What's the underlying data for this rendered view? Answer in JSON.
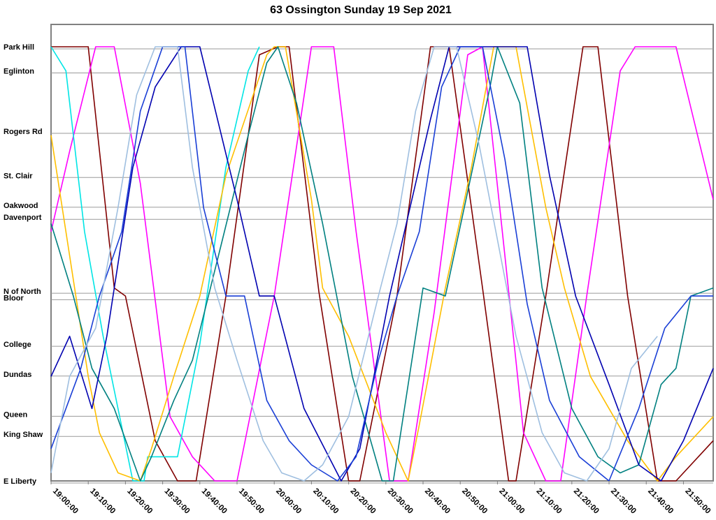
{
  "chart_data": {
    "type": "line",
    "title": "63 Ossington Sunday 19 Sep 2021",
    "xlabel": "",
    "ylabel": "",
    "x_ticks": [
      "19:00:00",
      "19:10:00",
      "19:20:00",
      "19:30:00",
      "19:40:00",
      "19:50:00",
      "20:00:00",
      "20:10:00",
      "20:20:00",
      "20:30:00",
      "20:40:00",
      "20:50:00",
      "21:00:00",
      "21:10:00",
      "21:20:00",
      "21:30:00",
      "21:40:00",
      "21:50:00"
    ],
    "xlim": [
      "19:00:00",
      "21:58:00"
    ],
    "stops": [
      {
        "name": "Park Hill",
        "km": 0.0
      },
      {
        "name": "Eglinton",
        "km": 0.3
      },
      {
        "name": "Rogers Rd",
        "km": 1.05
      },
      {
        "name": "St. Clair",
        "km": 1.6
      },
      {
        "name": "Oakwood",
        "km": 1.97
      },
      {
        "name": "Davenport",
        "km": 2.12
      },
      {
        "name": "N of North",
        "km": 3.04
      },
      {
        "name": "Bloor",
        "km": 3.12
      },
      {
        "name": "College",
        "km": 3.7
      },
      {
        "name": "Dundas",
        "km": 4.07
      },
      {
        "name": "Queen",
        "km": 4.57
      },
      {
        "name": "King Shaw",
        "km": 4.82
      },
      {
        "name": "E Liberty",
        "km": 5.4
      }
    ],
    "ylim": [
      0,
      5.4
    ],
    "grid": true,
    "series": [
      {
        "color": "#800000",
        "points": [
          [
            "19:00",
            0
          ],
          [
            "19:10",
            0
          ],
          [
            "19:17",
            3.0
          ],
          [
            "19:20",
            3.1
          ],
          [
            "19:28",
            4.9
          ],
          [
            "19:34",
            5.4
          ],
          [
            "19:39",
            5.4
          ],
          [
            "19:47",
            3.1
          ],
          [
            "19:56",
            0.1
          ],
          [
            "20:01",
            0
          ],
          [
            "20:04",
            0
          ],
          [
            "20:12",
            3.05
          ],
          [
            "20:20",
            5.4
          ],
          [
            "20:23",
            5.4
          ],
          [
            "20:33",
            3.1
          ],
          [
            "20:42",
            0
          ],
          [
            "20:47",
            0
          ],
          [
            "20:56",
            3.0
          ],
          [
            "21:03",
            5.4
          ],
          [
            "21:05",
            5.4
          ],
          [
            "21:13",
            3.1
          ],
          [
            "21:23",
            0
          ],
          [
            "21:27",
            0
          ],
          [
            "21:35",
            3.1
          ],
          [
            "21:43",
            5.4
          ],
          [
            "21:48",
            5.4
          ],
          [
            "21:58",
            4.9
          ]
        ]
      },
      {
        "color": "#ff00ff",
        "points": [
          [
            "19:00",
            2.3
          ],
          [
            "19:05",
            1.3
          ],
          [
            "19:12",
            0
          ],
          [
            "19:17",
            0
          ],
          [
            "19:24",
            1.7
          ],
          [
            "19:32",
            4.6
          ],
          [
            "19:38",
            5.1
          ],
          [
            "19:44",
            5.4
          ],
          [
            "19:50",
            5.4
          ],
          [
            "20:00",
            3.1
          ],
          [
            "20:10",
            0
          ],
          [
            "20:16",
            0
          ],
          [
            "20:22",
            2.3
          ],
          [
            "20:31",
            5.4
          ],
          [
            "20:36",
            5.4
          ],
          [
            "20:43",
            3.3
          ],
          [
            "20:52",
            0.1
          ],
          [
            "20:56",
            0
          ],
          [
            "21:02",
            2.6
          ],
          [
            "21:07",
            4.8
          ],
          [
            "21:13",
            5.4
          ],
          [
            "21:17",
            5.4
          ],
          [
            "21:24",
            3.1
          ],
          [
            "21:33",
            0.3
          ],
          [
            "21:37",
            0
          ],
          [
            "21:48",
            0
          ],
          [
            "21:58",
            1.9
          ]
        ]
      },
      {
        "color": "#00e5e5",
        "points": [
          [
            "19:00",
            0
          ],
          [
            "19:04",
            0.3
          ],
          [
            "19:09",
            2.3
          ],
          [
            "19:14",
            3.6
          ],
          [
            "19:22",
            5.4
          ],
          [
            "19:25",
            5.4
          ],
          [
            "19:26",
            5.1
          ],
          [
            "19:34",
            5.1
          ],
          [
            "19:40",
            3.7
          ],
          [
            "19:47",
            1.5
          ],
          [
            "19:53",
            0.3
          ],
          [
            "19:56",
            0
          ]
        ]
      },
      {
        "color": "#ffbf00",
        "points": [
          [
            "19:00",
            1.1
          ],
          [
            "19:05",
            2.6
          ],
          [
            "19:10",
            4.1
          ],
          [
            "19:13",
            4.8
          ],
          [
            "19:18",
            5.3
          ],
          [
            "19:24",
            5.4
          ],
          [
            "19:27",
            5.0
          ],
          [
            "19:33",
            4.1
          ],
          [
            "19:40",
            3.1
          ],
          [
            "19:47",
            1.6
          ],
          [
            "19:58",
            0.1
          ],
          [
            "20:00",
            0
          ],
          [
            "20:03",
            0
          ],
          [
            "20:10",
            1.9
          ],
          [
            "20:13",
            3.0
          ],
          [
            "20:20",
            3.6
          ],
          [
            "20:30",
            4.8
          ],
          [
            "20:36",
            5.4
          ],
          [
            "20:39",
            4.7
          ],
          [
            "20:46",
            3.0
          ],
          [
            "20:53",
            1.5
          ],
          [
            "20:59",
            0
          ],
          [
            "21:05",
            0
          ],
          [
            "21:13",
            2.0
          ],
          [
            "21:18",
            3.0
          ],
          [
            "21:25",
            4.1
          ],
          [
            "21:35",
            4.9
          ],
          [
            "21:43",
            5.4
          ],
          [
            "21:48",
            5.1
          ],
          [
            "21:58",
            4.6
          ]
        ]
      },
      {
        "color": "#008080",
        "points": [
          [
            "19:00",
            2.2
          ],
          [
            "19:06",
            3.1
          ],
          [
            "19:11",
            4.0
          ],
          [
            "19:17",
            4.5
          ],
          [
            "19:24",
            5.4
          ],
          [
            "19:27",
            5.1
          ],
          [
            "19:33",
            4.4
          ],
          [
            "19:38",
            3.9
          ],
          [
            "19:45",
            2.6
          ],
          [
            "19:53",
            1.1
          ],
          [
            "19:58",
            0.2
          ],
          [
            "20:01",
            0
          ],
          [
            "20:06",
            0.7
          ],
          [
            "20:13",
            2.2
          ],
          [
            "20:21",
            4.1
          ],
          [
            "20:29",
            5.4
          ],
          [
            "20:32",
            5.4
          ],
          [
            "20:40",
            3.0
          ],
          [
            "20:46",
            3.1
          ],
          [
            "20:52",
            1.8
          ],
          [
            "20:58",
            0.5
          ],
          [
            "21:00",
            0
          ],
          [
            "21:06",
            0.7
          ],
          [
            "21:12",
            3.0
          ],
          [
            "21:20",
            4.5
          ],
          [
            "21:27",
            5.1
          ],
          [
            "21:33",
            5.3
          ],
          [
            "21:38",
            5.2
          ],
          [
            "21:44",
            4.2
          ],
          [
            "21:48",
            4.0
          ],
          [
            "21:52",
            3.1
          ],
          [
            "21:58",
            3.0
          ]
        ]
      },
      {
        "color": "#0000b0",
        "points": [
          [
            "19:00",
            4.1
          ],
          [
            "19:05",
            3.6
          ],
          [
            "19:11",
            4.5
          ],
          [
            "19:15",
            3.6
          ],
          [
            "19:22",
            1.5
          ],
          [
            "19:28",
            0.5
          ],
          [
            "19:35",
            0
          ],
          [
            "19:40",
            0
          ],
          [
            "19:50",
            1.9
          ],
          [
            "19:56",
            3.1
          ],
          [
            "20:00",
            3.1
          ],
          [
            "20:08",
            4.5
          ],
          [
            "20:18",
            5.4
          ],
          [
            "20:23",
            5.0
          ],
          [
            "20:31",
            3.1
          ],
          [
            "20:42",
            0.9
          ],
          [
            "20:47",
            0
          ],
          [
            "21:00",
            0
          ],
          [
            "21:08",
            0
          ],
          [
            "21:14",
            1.6
          ],
          [
            "21:21",
            3.1
          ],
          [
            "21:30",
            4.2
          ],
          [
            "21:38",
            5.2
          ],
          [
            "21:44",
            5.4
          ],
          [
            "21:50",
            4.9
          ],
          [
            "21:58",
            4.0
          ]
        ]
      },
      {
        "color": "#1a3fd6",
        "points": [
          [
            "19:00",
            5.0
          ],
          [
            "19:08",
            4.0
          ],
          [
            "19:13",
            3.1
          ],
          [
            "19:19",
            2.3
          ],
          [
            "19:24",
            0.8
          ],
          [
            "19:30",
            0
          ],
          [
            "19:36",
            0
          ],
          [
            "19:41",
            2.0
          ],
          [
            "19:47",
            3.1
          ],
          [
            "19:52",
            3.1
          ],
          [
            "19:58",
            4.4
          ],
          [
            "20:04",
            4.9
          ],
          [
            "20:10",
            5.2
          ],
          [
            "20:17",
            5.4
          ],
          [
            "20:22",
            5.1
          ],
          [
            "20:28",
            3.9
          ],
          [
            "20:33",
            3.1
          ],
          [
            "20:39",
            2.3
          ],
          [
            "20:45",
            0.5
          ],
          [
            "20:50",
            0
          ],
          [
            "20:56",
            0
          ],
          [
            "21:02",
            1.4
          ],
          [
            "21:08",
            3.2
          ],
          [
            "21:14",
            4.4
          ],
          [
            "21:22",
            5.1
          ],
          [
            "21:30",
            5.4
          ],
          [
            "21:38",
            4.5
          ],
          [
            "21:45",
            3.5
          ],
          [
            "21:52",
            3.1
          ],
          [
            "21:58",
            3.1
          ]
        ]
      },
      {
        "color": "#9fbfe0",
        "points": [
          [
            "19:00",
            5.3
          ],
          [
            "19:05",
            4.1
          ],
          [
            "19:12",
            3.5
          ],
          [
            "19:18",
            2.0
          ],
          [
            "19:23",
            0.6
          ],
          [
            "19:28",
            0
          ],
          [
            "19:34",
            0
          ],
          [
            "19:38",
            1.5
          ],
          [
            "19:44",
            3.0
          ],
          [
            "19:50",
            3.9
          ],
          [
            "19:57",
            4.9
          ],
          [
            "20:02",
            5.3
          ],
          [
            "20:08",
            5.4
          ],
          [
            "20:13",
            5.2
          ],
          [
            "20:20",
            4.6
          ],
          [
            "20:28",
            3.1
          ],
          [
            "20:33",
            2.2
          ],
          [
            "20:38",
            0.8
          ],
          [
            "20:43",
            0
          ],
          [
            "20:49",
            0
          ],
          [
            "20:55",
            1.2
          ],
          [
            "21:00",
            2.4
          ],
          [
            "21:05",
            3.6
          ],
          [
            "21:12",
            4.8
          ],
          [
            "21:18",
            5.3
          ],
          [
            "21:24",
            5.4
          ],
          [
            "21:30",
            5.0
          ],
          [
            "21:36",
            4.0
          ],
          [
            "21:43",
            3.6
          ]
        ]
      }
    ]
  }
}
